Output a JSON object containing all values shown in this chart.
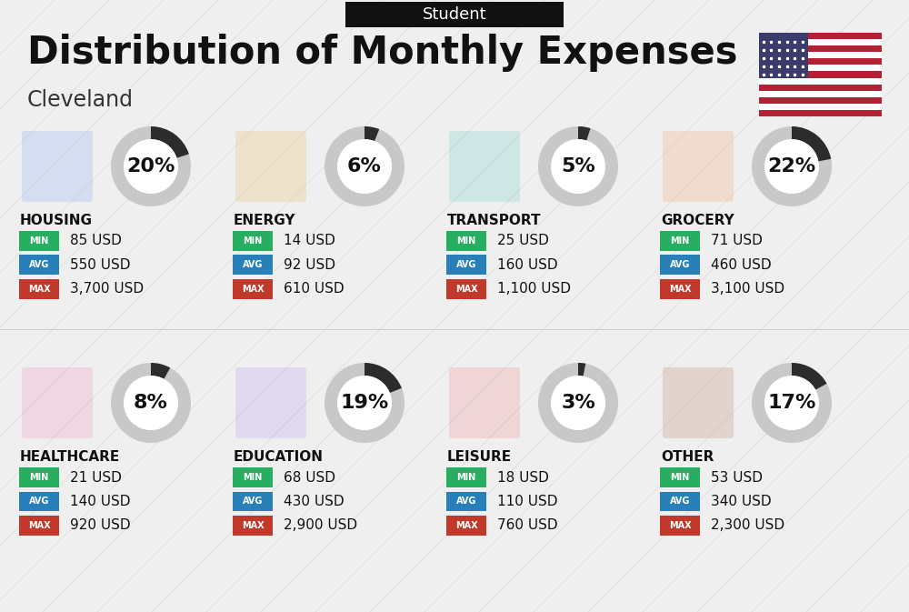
{
  "title": "Distribution of Monthly Expenses",
  "subtitle": "Student",
  "city": "Cleveland",
  "bg_color": "#efefef",
  "categories_row1": [
    {
      "name": "HOUSING",
      "percent": 20,
      "min": "85 USD",
      "avg": "550 USD",
      "max": "3,700 USD"
    },
    {
      "name": "ENERGY",
      "percent": 6,
      "min": "14 USD",
      "avg": "92 USD",
      "max": "610 USD"
    },
    {
      "name": "TRANSPORT",
      "percent": 5,
      "min": "25 USD",
      "avg": "160 USD",
      "max": "1,100 USD"
    },
    {
      "name": "GROCERY",
      "percent": 22,
      "min": "71 USD",
      "avg": "460 USD",
      "max": "3,100 USD"
    }
  ],
  "categories_row2": [
    {
      "name": "HEALTHCARE",
      "percent": 8,
      "min": "21 USD",
      "avg": "140 USD",
      "max": "920 USD"
    },
    {
      "name": "EDUCATION",
      "percent": 19,
      "min": "68 USD",
      "avg": "430 USD",
      "max": "2,900 USD"
    },
    {
      "name": "LEISURE",
      "percent": 3,
      "min": "18 USD",
      "avg": "110 USD",
      "max": "760 USD"
    },
    {
      "name": "OTHER",
      "percent": 17,
      "min": "53 USD",
      "avg": "340 USD",
      "max": "2,300 USD"
    }
  ],
  "min_color": "#27ae60",
  "avg_color": "#2980b9",
  "max_color": "#c0392b",
  "arc_fg_color": "#2c2c2c",
  "arc_bg_color": "#c8c8c8",
  "title_fontsize": 30,
  "subtitle_fontsize": 13,
  "city_fontsize": 17,
  "cat_fontsize": 11,
  "val_fontsize": 11,
  "pct_fontsize": 16,
  "badge_label_fontsize": 7
}
